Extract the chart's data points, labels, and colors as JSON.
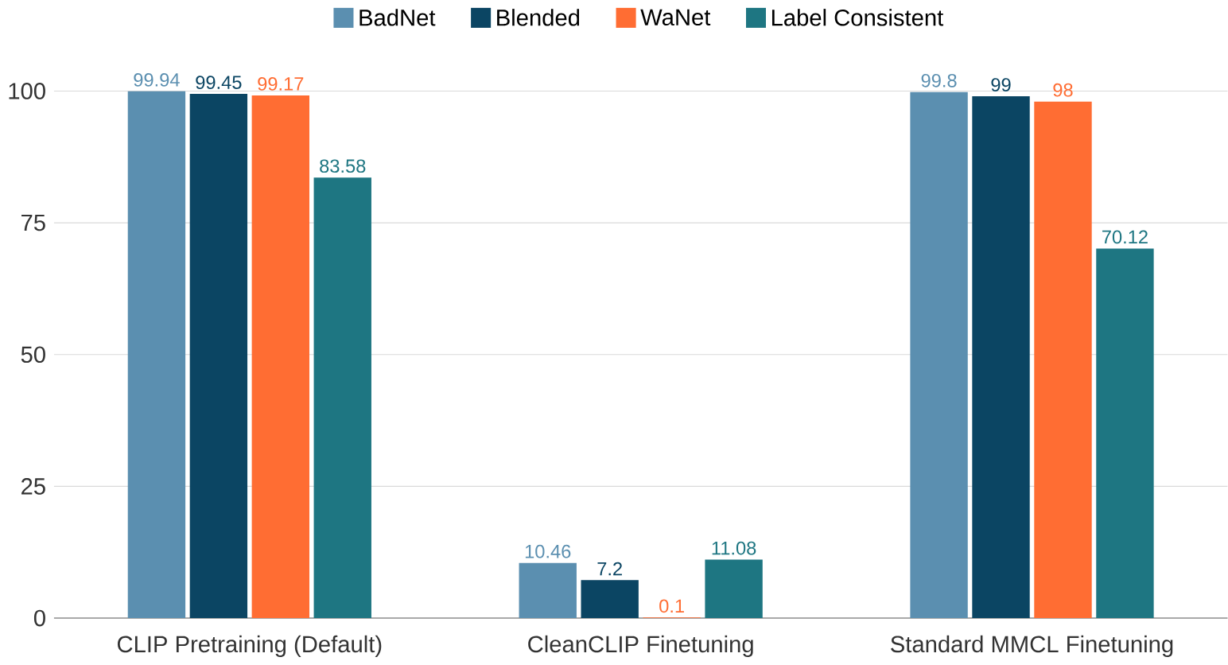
{
  "chart_data": {
    "type": "bar",
    "categories": [
      "CLIP Pretraining (Default)",
      "CleanCLIP Finetuning",
      "Standard MMCL Finetuning"
    ],
    "series": [
      {
        "name": "BadNet",
        "color": "#5b8fb0",
        "values": [
          99.94,
          10.46,
          99.8
        ]
      },
      {
        "name": "Blended",
        "color": "#0b4563",
        "values": [
          99.45,
          7.2,
          99
        ]
      },
      {
        "name": "WaNet",
        "color": "#ff6d33",
        "values": [
          99.17,
          0.1,
          98
        ]
      },
      {
        "name": "Label Consistent",
        "color": "#1e7682",
        "values": [
          83.58,
          11.08,
          70.12
        ]
      }
    ],
    "ylim": [
      0,
      100
    ],
    "yticks": [
      0,
      25,
      50,
      75,
      100
    ],
    "grid": "y",
    "legend": "top",
    "data_labels": true
  }
}
